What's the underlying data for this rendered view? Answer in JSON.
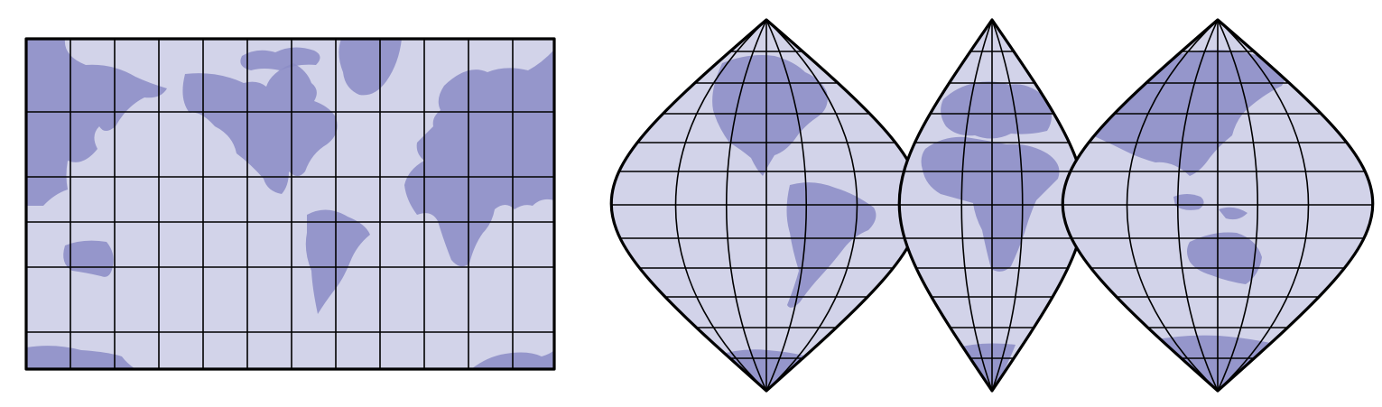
{
  "figure": {
    "left_map": {
      "projection": "cylindrical",
      "meridian_count": 12,
      "parallel_count": 5
    },
    "right_map": {
      "projection": "interrupted",
      "lobe_count": 3,
      "lobe_meridians": [
        5,
        3,
        5
      ],
      "parallel_count": 12
    },
    "colors": {
      "ocean": "#d2d3e9",
      "land": "#8c8dc6",
      "grid": "#000000"
    }
  }
}
